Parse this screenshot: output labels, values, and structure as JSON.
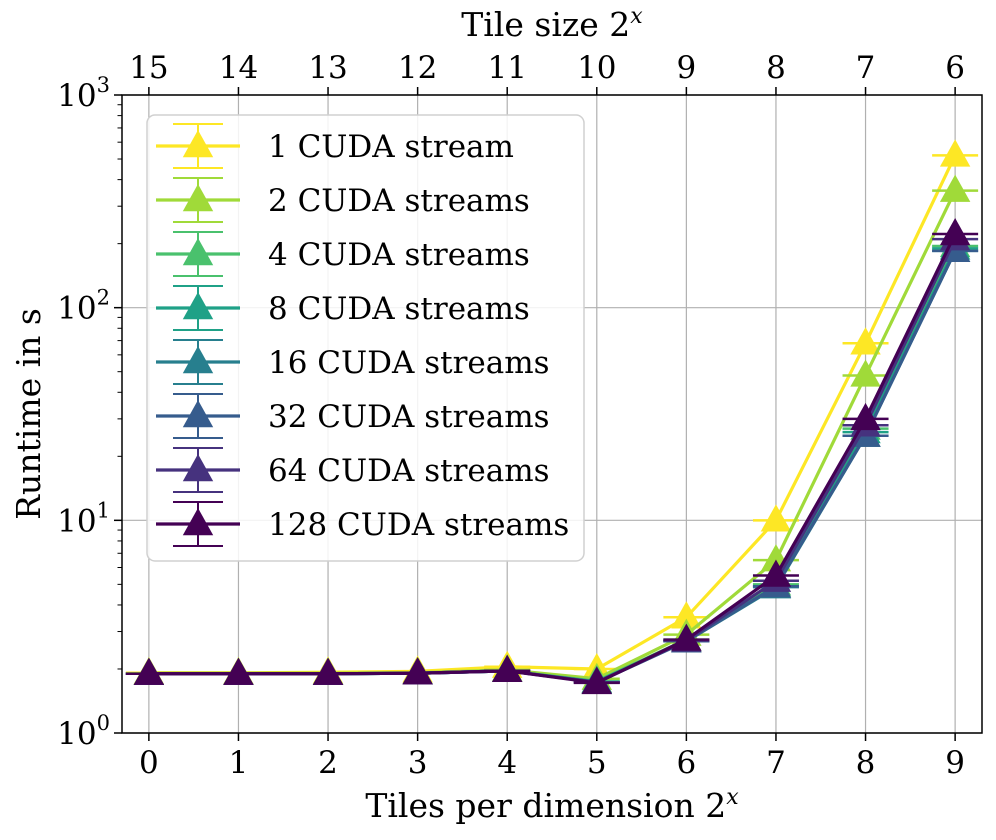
{
  "chart_data": {
    "type": "line",
    "yscale": "log",
    "xlabel": "Tiles per dimension 2",
    "xlabel_sup": "x",
    "ylabel": "Runtime in s",
    "top_xlabel": "Tile size 2",
    "top_xlabel_sup": "x",
    "x": [
      0,
      1,
      2,
      3,
      4,
      5,
      6,
      7,
      8,
      9
    ],
    "x_tick_labels": [
      "0",
      "1",
      "2",
      "3",
      "4",
      "5",
      "6",
      "7",
      "8",
      "9"
    ],
    "top_tick_labels": [
      "15",
      "14",
      "13",
      "12",
      "11",
      "10",
      "9",
      "8",
      "7",
      "6"
    ],
    "xlim": [
      -0.3,
      9.3
    ],
    "ylim": [
      1,
      1000
    ],
    "y_ticks": [
      {
        "value": 1,
        "base": "10",
        "exp": "0"
      },
      {
        "value": 10,
        "base": "10",
        "exp": "1"
      },
      {
        "value": 100,
        "base": "10",
        "exp": "2"
      },
      {
        "value": 1000,
        "base": "10",
        "exp": "3"
      }
    ],
    "grid": true,
    "legend_position": "top-left",
    "marker": "triangle-up",
    "series": [
      {
        "name": "1 CUDA stream",
        "color": "#fde725",
        "values": [
          1.92,
          1.92,
          1.93,
          1.95,
          2.05,
          2.0,
          3.5,
          10.0,
          68,
          520
        ]
      },
      {
        "name": "2 CUDA streams",
        "color": "#a0da39",
        "values": [
          1.91,
          1.91,
          1.91,
          1.92,
          1.98,
          1.8,
          2.9,
          6.5,
          48,
          355
        ]
      },
      {
        "name": "4 CUDA streams",
        "color": "#4ac16d",
        "values": [
          1.9,
          1.9,
          1.9,
          1.91,
          1.96,
          1.75,
          2.75,
          5.0,
          27,
          195
        ]
      },
      {
        "name": "8 CUDA streams",
        "color": "#1fa187",
        "values": [
          1.9,
          1.9,
          1.9,
          1.91,
          1.96,
          1.74,
          2.72,
          4.9,
          26,
          190
        ]
      },
      {
        "name": "16 CUDA streams",
        "color": "#277f8e",
        "values": [
          1.9,
          1.9,
          1.9,
          1.91,
          1.96,
          1.73,
          2.7,
          4.85,
          25,
          185
        ]
      },
      {
        "name": "32 CUDA streams",
        "color": "#365c8d",
        "values": [
          1.9,
          1.9,
          1.9,
          1.91,
          1.96,
          1.73,
          2.7,
          4.9,
          25,
          185
        ]
      },
      {
        "name": "64 CUDA streams",
        "color": "#46327e",
        "values": [
          1.9,
          1.9,
          1.9,
          1.91,
          1.96,
          1.73,
          2.72,
          5.2,
          28,
          210
        ]
      },
      {
        "name": "128 CUDA streams",
        "color": "#440154",
        "values": [
          1.9,
          1.9,
          1.9,
          1.91,
          1.96,
          1.72,
          2.75,
          5.5,
          30,
          222
        ]
      }
    ]
  }
}
